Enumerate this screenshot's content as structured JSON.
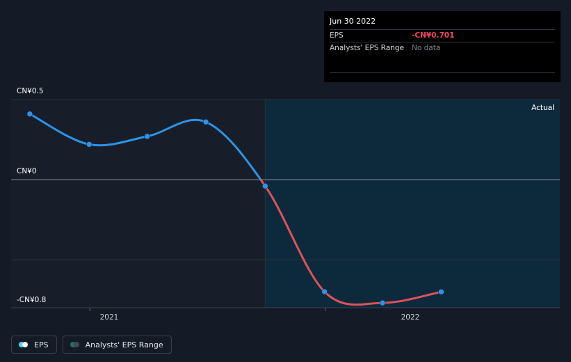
{
  "tooltip": {
    "date": "Jun 30 2022",
    "eps_label": "EPS",
    "eps_value": "-CN¥0.701",
    "range_label": "Analysts' EPS Range",
    "range_value": "No data"
  },
  "legend": {
    "eps_label": "EPS",
    "range_label": "Analysts' EPS Range"
  },
  "colors": {
    "background": "#151b26",
    "past_shade": "#171e29",
    "forecast_shade": "#0c2a3b",
    "positive_line": "#2e93e6",
    "negative_line": "#e0515c",
    "grid": "#2a323c",
    "zero_line": "#8a9099",
    "eps_swatch": "#4fd2f4",
    "range_swatch": "#2b6a70"
  },
  "chart_data": {
    "type": "line",
    "y_tick_labels": [
      "CN¥0.5",
      "CN¥0",
      "-CN¥0.8"
    ],
    "x_tick_labels": [
      "2021",
      "2022"
    ],
    "region_label": "Actual",
    "ylim": [
      -0.8,
      0.5
    ],
    "xlim": [
      "2020-09-01",
      "2022-12-31"
    ],
    "x_ticks": [
      "2021-01-01",
      "2022-01-01"
    ],
    "grid_values": [
      0.5,
      0,
      -0.5,
      -0.8
    ],
    "zero_line": 0,
    "shade_start": "2021-09-30",
    "series": [
      {
        "name": "EPS",
        "points": [
          {
            "x": "2020-09-30",
            "y": 0.41
          },
          {
            "x": "2020-12-31",
            "y": 0.22
          },
          {
            "x": "2021-03-31",
            "y": 0.27
          },
          {
            "x": "2021-06-30",
            "y": 0.36
          },
          {
            "x": "2021-09-30",
            "y": -0.04
          },
          {
            "x": "2021-12-31",
            "y": -0.7
          },
          {
            "x": "2022-03-31",
            "y": -0.77
          },
          {
            "x": "2022-06-30",
            "y": -0.701
          }
        ]
      }
    ],
    "grid": true,
    "legend_position": "bottom-left"
  }
}
